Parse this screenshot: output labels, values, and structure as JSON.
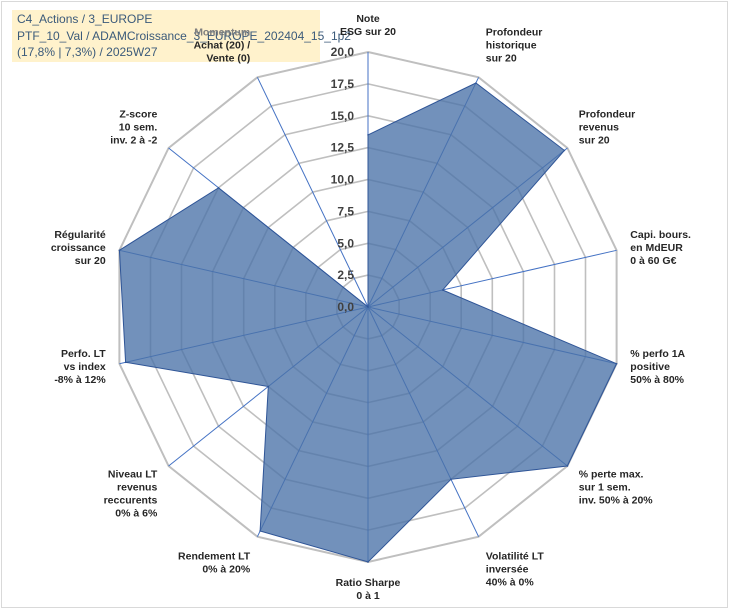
{
  "header": {
    "line1": "C4_Actions / 3_EUROPE",
    "line2": "PTF_10_Val / ADAMCroissance_3_EUROPE_202404_15_1p2",
    "line3": "(17,8% | 7,3%) / 2025W27"
  },
  "chart_data": {
    "type": "radar",
    "rmin": 0,
    "rmax": 20,
    "tick_step": 2.5,
    "tick_labels": [
      "0,0",
      "2,5",
      "5,0",
      "7,5",
      "10,0",
      "12,5",
      "15,0",
      "17,5",
      "20,0"
    ],
    "grid": true,
    "fill_color": "#4a72a8",
    "grid_color": "#bfbfbf",
    "axis_line_color": "#4472c4",
    "axes": [
      {
        "label": [
          "Note",
          "ESG sur 20"
        ],
        "value": 13.5
      },
      {
        "label": [
          "Profondeur",
          "historique",
          "sur 20"
        ],
        "value": 19.5
      },
      {
        "label": [
          "Profondeur",
          "revenus",
          "sur 20"
        ],
        "value": 19.7
      },
      {
        "label": [
          "Capi. bours.",
          "en MdEUR",
          "0 à 60 G€"
        ],
        "value": 6.0
      },
      {
        "label": [
          "% perfo 1A",
          "positive",
          "50% à 80%"
        ],
        "value": 20.0
      },
      {
        "label": [
          "% perte max.",
          "sur 1 sem.",
          "inv. 50% à 20%"
        ],
        "value": 20.0
      },
      {
        "label": [
          "Volatilité LT",
          "inversée",
          "40% à 0%"
        ],
        "value": 15.0
      },
      {
        "label": [
          "Ratio Sharpe",
          "0 à 1"
        ],
        "value": 20.0
      },
      {
        "label": [
          "Rendement LT",
          "0% à 20%"
        ],
        "value": 19.5
      },
      {
        "label": [
          "Niveau LT",
          "revenus",
          "reccurents",
          "0% à 6%"
        ],
        "value": 10.0
      },
      {
        "label": [
          "Perfo. LT",
          "vs index",
          "-8% à 12%"
        ],
        "value": 19.5
      },
      {
        "label": [
          "Régularité",
          "croissance",
          "sur 20"
        ],
        "value": 20.0
      },
      {
        "label": [
          "Z-score",
          "10 sem.",
          "inv. 2 à -2"
        ],
        "value": 15.0
      },
      {
        "label": [
          "Momentum",
          "Achat (20) /",
          "Vente (0)"
        ],
        "value": 0.0,
        "label_muted_first_line": true
      }
    ]
  }
}
